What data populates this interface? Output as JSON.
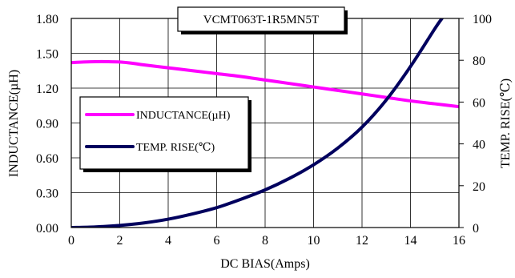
{
  "chart_data": {
    "type": "line",
    "title": "VCMT063T-1R5MN5T",
    "xlabel": "DC BIAS(Amps)",
    "ylabel_left": "INDUCTANCE(µH)",
    "ylabel_right": "TEMP. RISE(℃)",
    "xlim": [
      0,
      16
    ],
    "ylim_left": [
      0,
      1.8
    ],
    "ylim_right": [
      0,
      100
    ],
    "x_ticks": [
      "0",
      "2",
      "4",
      "6",
      "8",
      "10",
      "12",
      "14",
      "16"
    ],
    "y_left_ticks": [
      "0.00",
      "0.30",
      "0.60",
      "0.90",
      "1.20",
      "1.50",
      "1.80"
    ],
    "y_right_ticks": [
      "0",
      "20",
      "40",
      "60",
      "80",
      "100"
    ],
    "grid": true,
    "legend_position": "left",
    "series": [
      {
        "name": "INDUCTANCE(µH)",
        "axis": "left",
        "color": "#ff00ff",
        "x": [
          0,
          0.5,
          1,
          1.5,
          2,
          2.5,
          3,
          4,
          5,
          6,
          7,
          8,
          9,
          10,
          11,
          12,
          13,
          14,
          15,
          16
        ],
        "y": [
          1.42,
          1.425,
          1.428,
          1.428,
          1.425,
          1.415,
          1.4,
          1.375,
          1.35,
          1.325,
          1.3,
          1.27,
          1.24,
          1.21,
          1.18,
          1.15,
          1.12,
          1.09,
          1.065,
          1.04
        ]
      },
      {
        "name": "TEMP. RISE(℃)",
        "axis": "right",
        "color": "#00005e",
        "x": [
          0,
          1,
          2,
          3,
          4,
          5,
          6,
          7,
          8,
          9,
          10,
          11,
          12,
          13,
          14,
          15,
          15.3
        ],
        "y": [
          0,
          0.3,
          1,
          2.2,
          4,
          6.5,
          9.5,
          13.5,
          18,
          23.5,
          30,
          38,
          48,
          61,
          77,
          95,
          100
        ]
      }
    ]
  }
}
